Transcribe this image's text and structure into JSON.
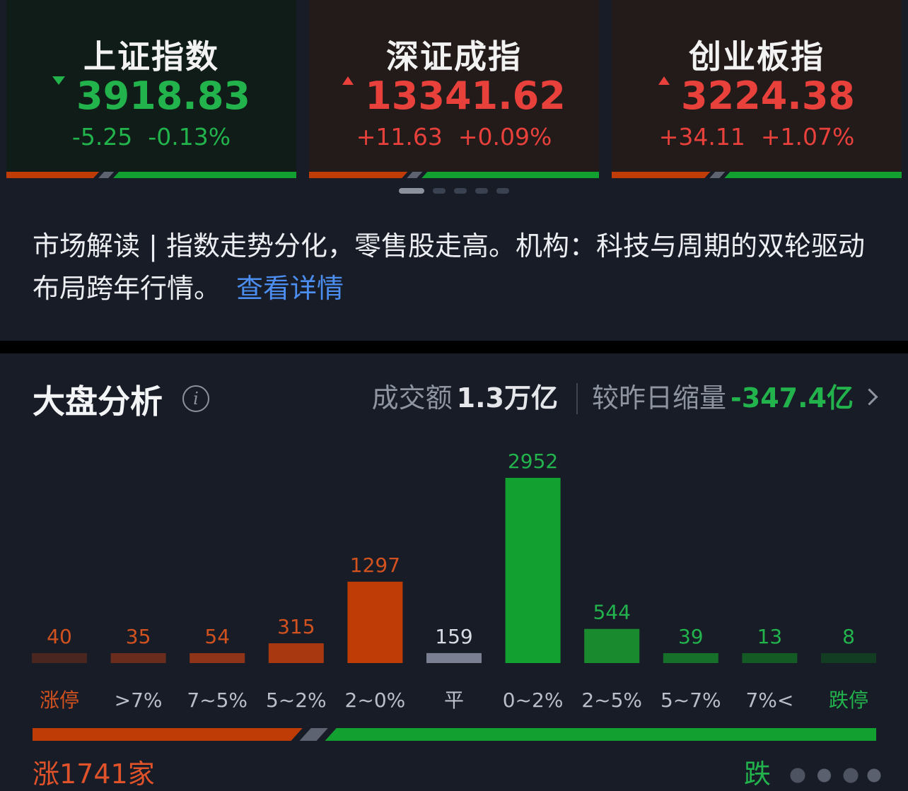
{
  "indices": [
    {
      "name": "上证指数",
      "value": "3918.83",
      "change": "-5.25",
      "pct": "-0.13%",
      "direction": "down",
      "up_ratio": 0.32
    },
    {
      "name": "深证成指",
      "value": "13341.62",
      "change": "+11.63",
      "pct": "+0.09%",
      "direction": "up",
      "up_ratio": 0.34
    },
    {
      "name": "创业板指",
      "value": "3224.38",
      "change": "+34.11",
      "pct": "+1.07%",
      "direction": "up",
      "up_ratio": 0.34
    }
  ],
  "pager": {
    "count": 5,
    "active": 0
  },
  "summary": {
    "text": "市场解读 | 指数走势分化，零售股走高。机构：科技与周期的双轮驱动布局跨年行情。",
    "link": "查看详情"
  },
  "analysis": {
    "title": "大盘分析",
    "turnover_label": "成交额",
    "turnover_value": "1.3万亿",
    "compare_label": "较昨日缩量",
    "compare_value": "-347.4亿"
  },
  "chart_data": {
    "type": "bar",
    "categories": [
      "涨停",
      ">7%",
      "7~5%",
      "5~2%",
      "2~0%",
      "平",
      "0~2%",
      "2~5%",
      "5~7%",
      "7%<",
      "跌停"
    ],
    "values": [
      40,
      35,
      54,
      315,
      1297,
      159,
      2952,
      544,
      39,
      13,
      8
    ],
    "labels": [
      "40",
      "35",
      "54",
      "315",
      "1297",
      "159",
      "2952",
      "544",
      "39",
      "13",
      "8"
    ],
    "colors": [
      "#4a2620",
      "#6a2c1c",
      "#8f3418",
      "#a8380f",
      "#c03c06",
      "#7a8091",
      "#12a130",
      "#1a8a2e",
      "#17702a",
      "#145a25",
      "#133d22"
    ],
    "label_colors": [
      "#d2521f",
      "#d2521f",
      "#d2521f",
      "#d2521f",
      "#d2521f",
      "#d8dbe2",
      "#22b34c",
      "#22b34c",
      "#22b34c",
      "#22b34c",
      "#22b34c"
    ],
    "category_colors": [
      "#d2521f",
      "#b9bec8",
      "#b9bec8",
      "#b9bec8",
      "#b9bec8",
      "#b9bec8",
      "#b9bec8",
      "#b9bec8",
      "#b9bec8",
      "#b9bec8",
      "#22b34c"
    ],
    "ylim": [
      0,
      2952
    ]
  },
  "totals": {
    "up_text": "涨1741家",
    "down_text": "跌",
    "up_ratio": 0.32
  },
  "colors": {
    "up": "#e8413b",
    "down": "#22b34c",
    "up_bar": "#c03c06",
    "down_bar": "#12a130",
    "flat": "#5d6371",
    "link": "#4b8ef0"
  }
}
